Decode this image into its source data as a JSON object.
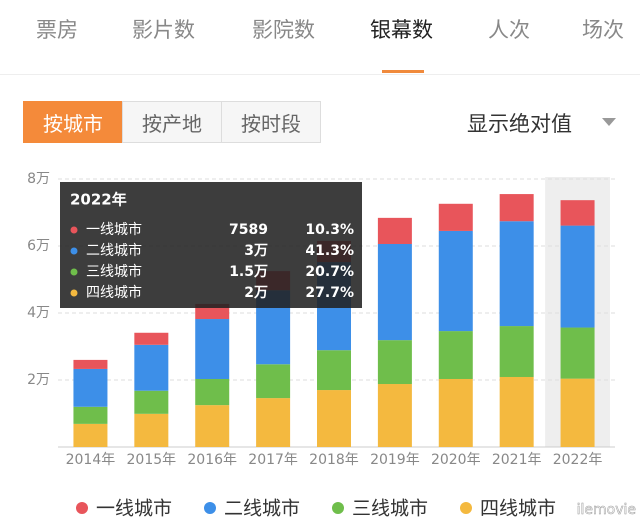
{
  "tabs": [
    "票房",
    "影片数",
    "影院数",
    "银幕数",
    "人次",
    "场次"
  ],
  "active_tab": 3,
  "filters": [
    "按城市",
    "按产地",
    "按时段"
  ],
  "active_filter": 0,
  "dropdown": "显示绝对值",
  "watermark": "ilemovie",
  "chart_data": {
    "type": "stacked_bar",
    "categories": [
      "2014年",
      "2015年",
      "2016年",
      "2017年",
      "2018年",
      "2019年",
      "2020年",
      "2021年",
      "2022年"
    ],
    "ylim": [
      0,
      80000
    ],
    "yticks": [
      {
        "value": 20000,
        "label": "2万"
      },
      {
        "value": 40000,
        "label": "4万"
      },
      {
        "value": 60000,
        "label": "6万"
      },
      {
        "value": 80000,
        "label": "8万"
      }
    ],
    "grid": true,
    "legend": "bottom",
    "highlight": 8,
    "series": [
      {
        "name": "四线城市",
        "color": "#f4b93f",
        "values": [
          6900,
          9900,
          12500,
          14600,
          17000,
          18800,
          20300,
          20900,
          20410
        ],
        "value_labels": [
          null,
          null,
          null,
          null,
          null,
          null,
          null,
          null,
          "2万"
        ]
      },
      {
        "name": "三线城市",
        "color": "#6fbe4b",
        "values": [
          5100,
          6900,
          7800,
          10100,
          11900,
          13100,
          14300,
          15200,
          15250
        ],
        "value_labels": [
          null,
          null,
          null,
          null,
          null,
          null,
          null,
          null,
          "1.5万"
        ]
      },
      {
        "name": "二线城市",
        "color": "#3d8fe8",
        "values": [
          11300,
          13700,
          17900,
          22100,
          26300,
          28700,
          29900,
          31300,
          30430
        ],
        "value_labels": [
          null,
          null,
          null,
          null,
          null,
          null,
          null,
          null,
          "3万"
        ]
      },
      {
        "name": "一线城市",
        "color": "#e8555b",
        "values": [
          2700,
          3600,
          4500,
          5700,
          6300,
          7800,
          8100,
          8100,
          7589
        ],
        "value_labels": [
          null,
          null,
          null,
          null,
          null,
          null,
          null,
          null,
          "7589"
        ]
      }
    ],
    "tooltip": {
      "rows": [
        {
          "series": 3,
          "share": "10.3%"
        },
        {
          "series": 2,
          "share": "41.3%"
        },
        {
          "series": 1,
          "share": "20.7%"
        },
        {
          "series": 0,
          "share": "27.7%"
        }
      ]
    }
  }
}
